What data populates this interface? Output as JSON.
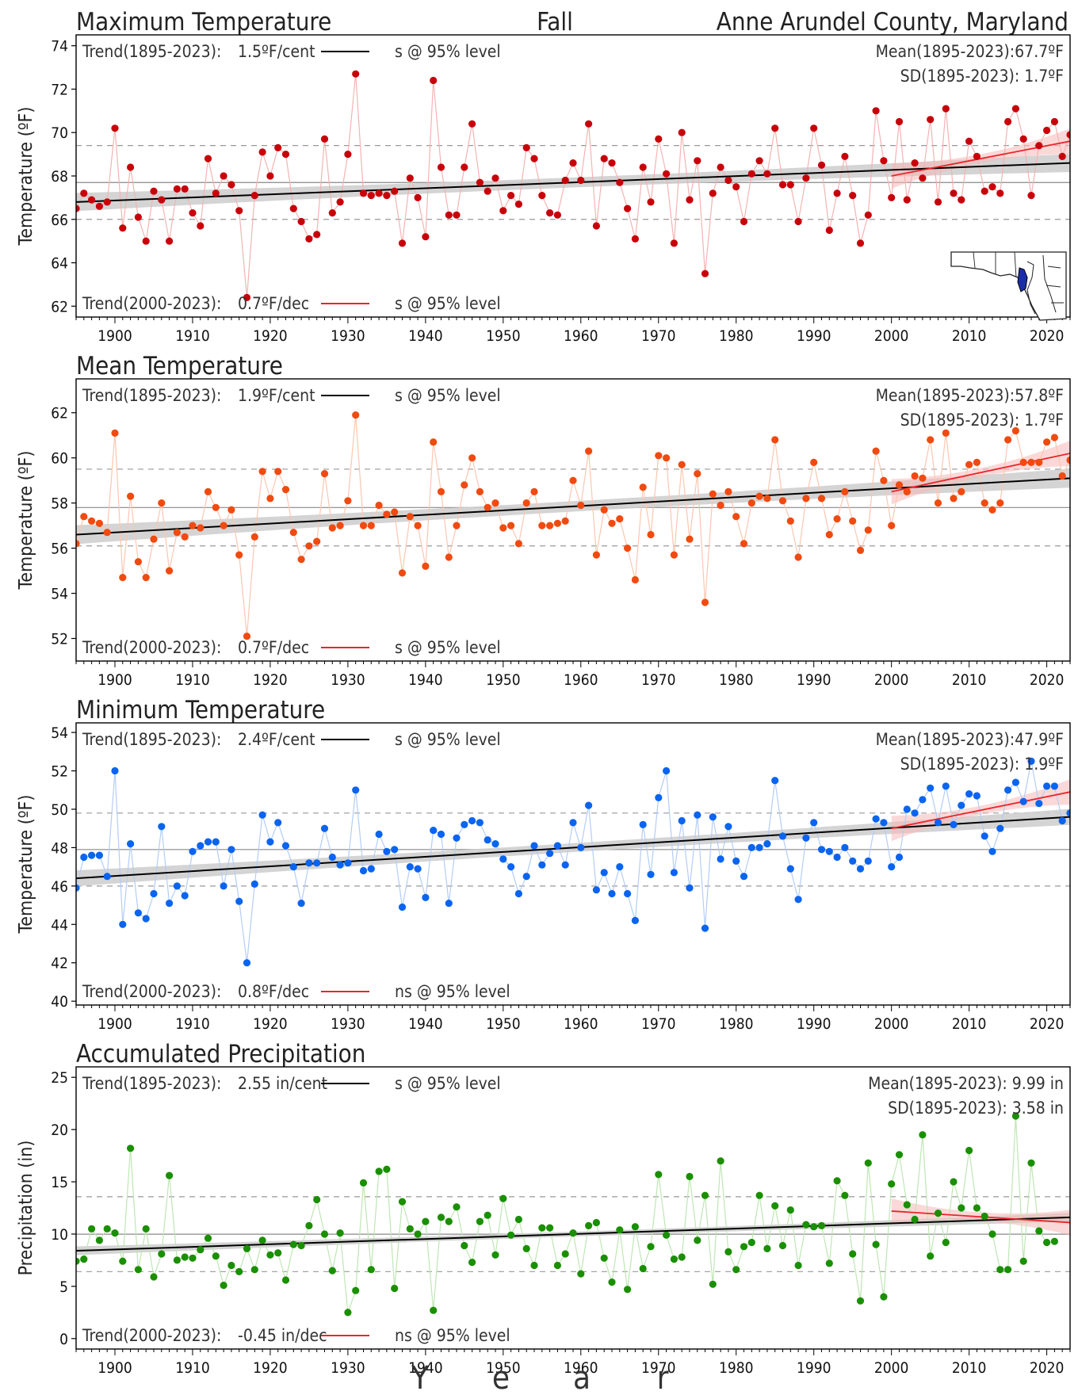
{
  "header": {
    "left": "Maximum Temperature",
    "center": "Fall",
    "right": "Anne Arundel County, Maryland"
  },
  "x_axis": {
    "label_letters": [
      "Y",
      "e",
      "a",
      "r"
    ]
  },
  "map_icon": "maryland-state-map-icon",
  "chart_data": [
    {
      "type": "scatter",
      "panel": "Maximum Temperature",
      "title": "",
      "ylabel": "Temperature (ºF)",
      "xlim": [
        1895,
        2023
      ],
      "ylim": [
        61.5,
        74.5
      ],
      "yticks": [
        62,
        64,
        66,
        68,
        70,
        72,
        74
      ],
      "xticks": [
        1900,
        1910,
        1920,
        1930,
        1940,
        1950,
        1960,
        1970,
        1980,
        1990,
        2000,
        2010,
        2020
      ],
      "color": "#c8000a",
      "line_color": "#f4b3b3",
      "x_start": 1895,
      "y": [
        66.5,
        67.2,
        66.9,
        66.6,
        66.8,
        70.2,
        65.6,
        68.4,
        66.1,
        65.0,
        67.3,
        66.9,
        65.0,
        67.4,
        67.4,
        66.3,
        65.7,
        68.8,
        67.2,
        68.0,
        67.6,
        66.4,
        62.4,
        67.1,
        69.1,
        68.0,
        69.3,
        69.0,
        66.5,
        65.9,
        65.1,
        65.3,
        69.7,
        66.3,
        66.8,
        69.0,
        72.7,
        67.2,
        67.1,
        67.2,
        67.1,
        67.3,
        64.9,
        67.9,
        67.0,
        65.2,
        72.4,
        68.4,
        66.2,
        66.2,
        68.4,
        70.4,
        67.7,
        67.3,
        67.9,
        66.4,
        67.1,
        66.7,
        69.3,
        68.8,
        67.1,
        66.3,
        66.2,
        67.8,
        68.6,
        67.8,
        70.4,
        65.7,
        68.8,
        68.6,
        67.7,
        66.5,
        65.1,
        68.4,
        66.8,
        69.7,
        68.1,
        64.9,
        70.0,
        66.9,
        68.7,
        63.5,
        67.2,
        68.4,
        67.8,
        67.5,
        65.9,
        68.1,
        68.7,
        68.1,
        70.2,
        67.6,
        67.6,
        65.9,
        67.9,
        70.2,
        68.5,
        65.5,
        67.2,
        68.9,
        67.1,
        64.9,
        66.2,
        71.0,
        68.7,
        67.0,
        70.5,
        66.9,
        68.6,
        67.9,
        70.6,
        66.8,
        71.1,
        67.2,
        66.9,
        69.6,
        68.9,
        67.3,
        67.5,
        67.2,
        70.5,
        71.1,
        69.7,
        67.1,
        69.4,
        70.1,
        70.5,
        68.9,
        69.9
      ],
      "mean": 67.7,
      "sd": 1.7,
      "trend_long": {
        "start": 66.8,
        "end": 68.6
      },
      "trend_recent": {
        "start": 68.0,
        "end": 69.6
      },
      "annotations": {
        "long": {
          "label": "Trend(1895-2023):",
          "value": "1.5ºF/cent",
          "sig": "s @ 95% level"
        },
        "recent": {
          "label": "Trend(2000-2023):",
          "value": "0.7ºF/dec",
          "sig": "s @ 95% level"
        },
        "mean": "Mean(1895-2023):67.7ºF",
        "sd": "SD(1895-2023): 1.7ºF"
      }
    },
    {
      "type": "scatter",
      "panel": "Mean Temperature",
      "title": "Mean Temperature",
      "ylabel": "Temperature (ºF)",
      "xlim": [
        1895,
        2023
      ],
      "ylim": [
        51.0,
        63.5
      ],
      "yticks": [
        52,
        54,
        56,
        58,
        60,
        62
      ],
      "xticks": [
        1900,
        1910,
        1920,
        1930,
        1940,
        1950,
        1960,
        1970,
        1980,
        1990,
        2000,
        2010,
        2020
      ],
      "color": "#f04a10",
      "line_color": "#fbc7b0",
      "x_start": 1895,
      "y": [
        56.2,
        57.4,
        57.2,
        57.1,
        56.7,
        61.1,
        54.7,
        58.3,
        55.4,
        54.7,
        56.4,
        58.0,
        55.0,
        56.7,
        56.5,
        57.0,
        56.9,
        58.5,
        57.8,
        57.0,
        57.7,
        55.7,
        52.1,
        56.5,
        59.4,
        58.2,
        59.4,
        58.6,
        56.7,
        55.5,
        56.1,
        56.3,
        59.3,
        56.9,
        57.0,
        58.1,
        61.9,
        57.0,
        57.0,
        57.9,
        57.5,
        57.6,
        54.9,
        57.4,
        57.0,
        55.2,
        60.7,
        58.5,
        55.6,
        57.0,
        58.8,
        60.0,
        58.5,
        57.8,
        58.0,
        56.9,
        57.0,
        56.2,
        58.0,
        58.5,
        57.0,
        57.0,
        57.1,
        57.2,
        59.0,
        57.9,
        60.3,
        55.7,
        57.7,
        57.1,
        57.3,
        56.0,
        54.6,
        58.7,
        56.6,
        60.1,
        60.0,
        55.7,
        59.7,
        56.4,
        59.3,
        53.6,
        58.4,
        57.9,
        58.5,
        57.4,
        56.2,
        58.0,
        58.3,
        58.2,
        60.8,
        58.1,
        57.2,
        55.6,
        58.2,
        59.8,
        58.2,
        56.6,
        57.3,
        58.5,
        57.2,
        55.9,
        56.8,
        60.3,
        59.0,
        57.0,
        58.8,
        58.5,
        59.2,
        59.1,
        60.8,
        58.0,
        61.1,
        58.2,
        58.5,
        59.7,
        59.8,
        58.0,
        57.7,
        58.0,
        60.8,
        61.2,
        59.8,
        59.8,
        59.8,
        60.7,
        60.9,
        59.2,
        59.9
      ],
      "mean": 57.8,
      "sd": 1.7,
      "trend_long": {
        "start": 56.6,
        "end": 59.1
      },
      "trend_recent": {
        "start": 58.5,
        "end": 60.2
      },
      "annotations": {
        "long": {
          "label": "Trend(1895-2023):",
          "value": "1.9ºF/cent",
          "sig": "s @ 95% level"
        },
        "recent": {
          "label": "Trend(2000-2023):",
          "value": "0.7ºF/dec",
          "sig": "s @ 95% level"
        },
        "mean": "Mean(1895-2023):57.8ºF",
        "sd": "SD(1895-2023): 1.7ºF"
      }
    },
    {
      "type": "scatter",
      "panel": "Minimum Temperature",
      "title": "Minimum Temperature",
      "ylabel": "Temperature (ºF)",
      "xlim": [
        1895,
        2023
      ],
      "ylim": [
        39.8,
        54.5
      ],
      "yticks": [
        40,
        42,
        44,
        46,
        48,
        50,
        52,
        54
      ],
      "xticks": [
        1900,
        1910,
        1920,
        1930,
        1940,
        1950,
        1960,
        1970,
        1980,
        1990,
        2000,
        2010,
        2020
      ],
      "color": "#0a64f0",
      "line_color": "#b4cdf4",
      "x_start": 1895,
      "y": [
        45.9,
        47.5,
        47.6,
        47.6,
        46.5,
        52.0,
        44.0,
        48.2,
        44.6,
        44.3,
        45.6,
        49.1,
        45.1,
        46.0,
        45.5,
        47.8,
        48.1,
        48.3,
        48.3,
        46.0,
        47.9,
        45.2,
        42.0,
        46.1,
        49.7,
        48.3,
        49.3,
        48.1,
        47.0,
        45.1,
        47.2,
        47.2,
        49.0,
        47.5,
        47.1,
        47.2,
        51.0,
        46.8,
        46.9,
        48.7,
        47.8,
        47.9,
        44.9,
        47.0,
        46.9,
        45.4,
        48.9,
        48.7,
        45.1,
        48.5,
        49.2,
        49.4,
        49.3,
        48.4,
        48.2,
        47.4,
        47.0,
        45.6,
        46.5,
        48.1,
        47.1,
        47.7,
        48.1,
        47.1,
        49.3,
        48.0,
        50.2,
        45.8,
        46.7,
        45.6,
        47.0,
        45.6,
        44.2,
        49.2,
        46.6,
        50.6,
        52.0,
        46.7,
        49.4,
        45.9,
        49.7,
        43.8,
        49.6,
        47.4,
        49.1,
        47.3,
        46.5,
        48.0,
        48.0,
        48.2,
        51.5,
        48.6,
        46.9,
        45.3,
        48.5,
        49.3,
        47.9,
        47.8,
        47.5,
        48.0,
        47.3,
        46.9,
        47.3,
        49.5,
        49.3,
        47.0,
        47.5,
        50.0,
        49.8,
        50.5,
        51.1,
        49.3,
        51.2,
        49.2,
        50.2,
        50.8,
        50.7,
        48.6,
        47.8,
        49.0,
        51.0,
        51.4,
        50.4,
        52.5,
        50.3,
        51.2,
        51.2,
        49.4,
        49.8
      ],
      "mean": 47.9,
      "sd": 1.9,
      "trend_long": {
        "start": 46.4,
        "end": 49.6
      },
      "trend_recent": {
        "start": 49.0,
        "end": 50.9
      },
      "annotations": {
        "long": {
          "label": "Trend(1895-2023):",
          "value": "2.4ºF/cent",
          "sig": "s @ 95% level"
        },
        "recent": {
          "label": "Trend(2000-2023):",
          "value": "0.8ºF/dec",
          "sig": "ns @ 95% level"
        },
        "mean": "Mean(1895-2023):47.9ºF",
        "sd": "SD(1895-2023): 1.9ºF"
      }
    },
    {
      "type": "scatter",
      "panel": "Accumulated Precipitation",
      "title": "Accumulated Precipitation",
      "ylabel": "Precipitation (in)",
      "xlim": [
        1895,
        2023
      ],
      "ylim": [
        -1.0,
        26.0
      ],
      "yticks": [
        0,
        5,
        10,
        15,
        20,
        25
      ],
      "xticks": [
        1900,
        1910,
        1920,
        1930,
        1940,
        1950,
        1960,
        1970,
        1980,
        1990,
        2000,
        2010,
        2020
      ],
      "color": "#1a8f00",
      "line_color": "#bfe6b4",
      "x_start": 1895,
      "y": [
        7.4,
        7.6,
        10.5,
        9.4,
        10.5,
        10.1,
        7.4,
        18.2,
        6.6,
        10.5,
        5.9,
        8.1,
        15.6,
        7.5,
        7.8,
        7.7,
        8.5,
        9.6,
        7.9,
        5.1,
        7.0,
        6.4,
        8.6,
        6.6,
        9.4,
        8.0,
        8.2,
        5.6,
        9.0,
        8.9,
        10.8,
        13.3,
        10.0,
        6.5,
        10.1,
        2.5,
        4.6,
        14.9,
        6.6,
        16.0,
        16.2,
        4.8,
        13.1,
        10.5,
        10.0,
        11.2,
        2.7,
        11.6,
        11.2,
        12.6,
        8.9,
        7.3,
        11.2,
        11.8,
        8.0,
        13.4,
        9.9,
        11.4,
        8.6,
        7.0,
        10.6,
        10.6,
        7.0,
        8.1,
        10.1,
        6.2,
        10.8,
        11.1,
        7.7,
        5.4,
        10.4,
        4.7,
        10.7,
        6.7,
        8.8,
        15.7,
        9.9,
        7.6,
        7.8,
        15.5,
        9.4,
        13.7,
        5.2,
        17.0,
        8.3,
        6.6,
        8.8,
        9.2,
        13.7,
        8.6,
        12.7,
        8.9,
        12.3,
        7.0,
        10.9,
        10.7,
        10.8,
        7.2,
        15.1,
        13.7,
        8.1,
        3.6,
        16.8,
        9.0,
        4.0,
        14.8,
        17.6,
        12.8,
        11.4,
        19.5,
        7.9,
        12.0,
        9.2,
        15.0,
        12.5,
        18.0,
        12.5,
        11.7,
        10.0,
        6.6,
        6.6,
        21.3,
        7.4,
        16.8,
        10.3,
        9.2,
        9.3
      ],
      "mean": 9.99,
      "sd": 3.58,
      "trend_long": {
        "start": 8.4,
        "end": 11.6
      },
      "trend_recent": {
        "start": 12.2,
        "end": 11.1
      },
      "annotations": {
        "long": {
          "label": "Trend(1895-2023):",
          "value": "2.55 in/cent",
          "sig": "s @ 95% level"
        },
        "recent": {
          "label": "Trend(2000-2023):",
          "value": "-0.45 in/dec",
          "sig": "ns @ 95% level"
        },
        "mean": "Mean(1895-2023): 9.99 in",
        "sd": "SD(1895-2023): 3.58 in"
      }
    }
  ]
}
